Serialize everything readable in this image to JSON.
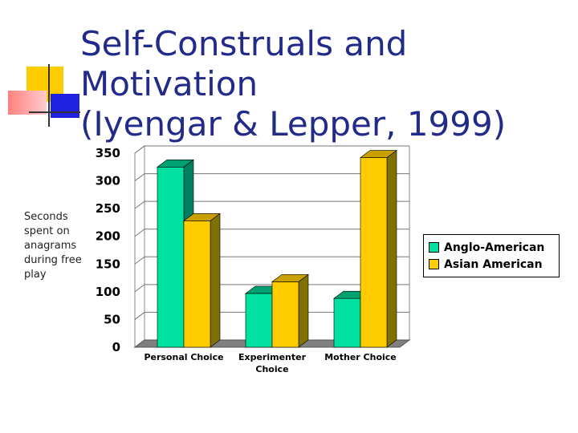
{
  "slide": {
    "title": "Self-Construals and Motivation\n(Iyengar & Lepper, 1999)",
    "side_label": "Seconds spent on anagrams during free play"
  },
  "chart_data": {
    "type": "bar",
    "title": "",
    "xlabel": "",
    "ylabel": "Seconds spent on anagrams during free play",
    "categories": [
      "Personal Choice",
      "Experimenter Choice",
      "Mother Choice"
    ],
    "series": [
      {
        "name": "Anglo-American",
        "values": [
          325,
          97,
          88
        ],
        "color": "#00e0a0",
        "top_color": "#00a070",
        "side_color": "#008060"
      },
      {
        "name": "Asian American",
        "values": [
          228,
          118,
          342
        ],
        "color": "#ffcc00",
        "top_color": "#c8a000",
        "side_color": "#807000"
      }
    ],
    "ylim": [
      0,
      350
    ],
    "yticks": [
      0,
      50,
      100,
      150,
      200,
      250,
      300,
      350
    ],
    "grid": true,
    "legend_position": "right"
  }
}
